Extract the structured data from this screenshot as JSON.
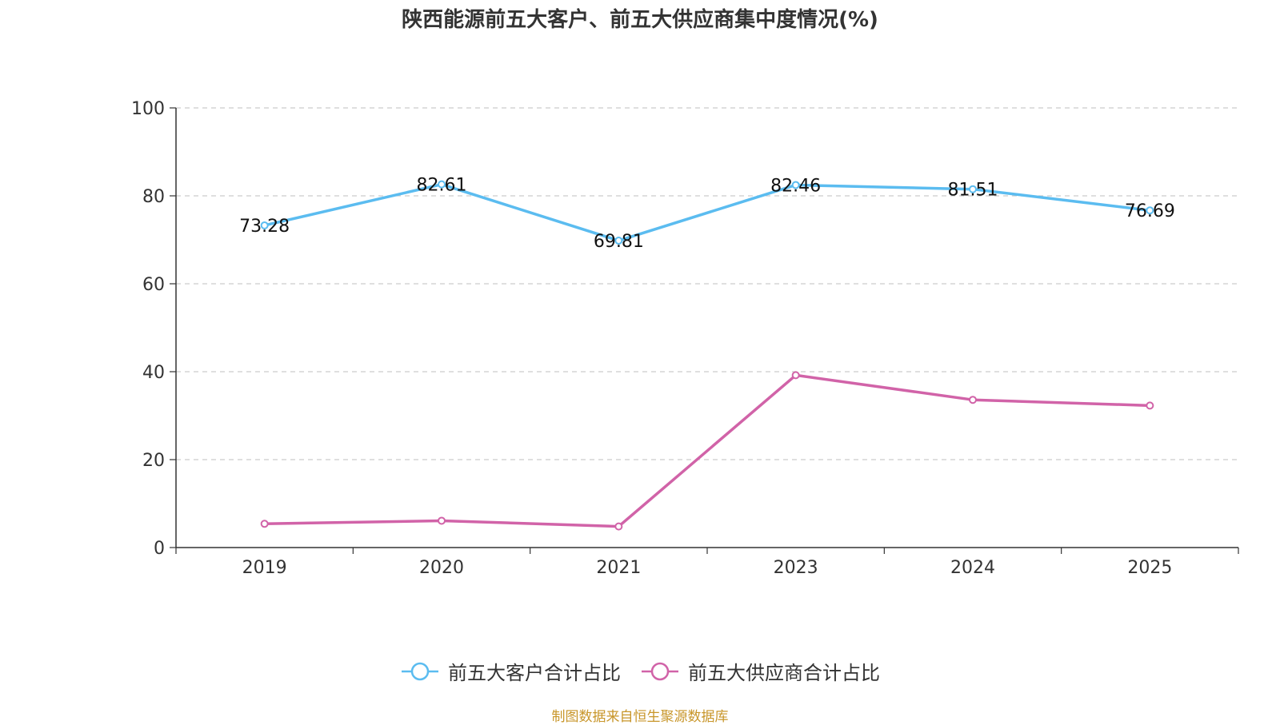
{
  "chart_data": {
    "type": "line",
    "title": "陕西能源前五大客户、前五大供应商集中度情况(%)",
    "categories": [
      "2019",
      "2020",
      "2021",
      "2023",
      "2024",
      "2025"
    ],
    "ylim": [
      0,
      100
    ],
    "yticks": [
      0,
      20,
      40,
      60,
      80,
      100
    ],
    "grid": true,
    "legend_position": "bottom",
    "series": [
      {
        "name": "前五大客户合计占比",
        "color": "#5bbcf0",
        "values": [
          73.28,
          82.61,
          69.81,
          82.46,
          81.51,
          76.69
        ],
        "labels": [
          "73.28",
          "82.61",
          "69.81",
          "82.46",
          "81.51",
          "76.69"
        ]
      },
      {
        "name": "前五大供应商合计占比",
        "color": "#d163a8",
        "values": [
          5.4,
          6.1,
          4.8,
          39.2,
          33.6,
          32.3
        ]
      }
    ]
  },
  "source": {
    "text": "制图数据来自恒生聚源数据库",
    "color": "#c8962a"
  }
}
